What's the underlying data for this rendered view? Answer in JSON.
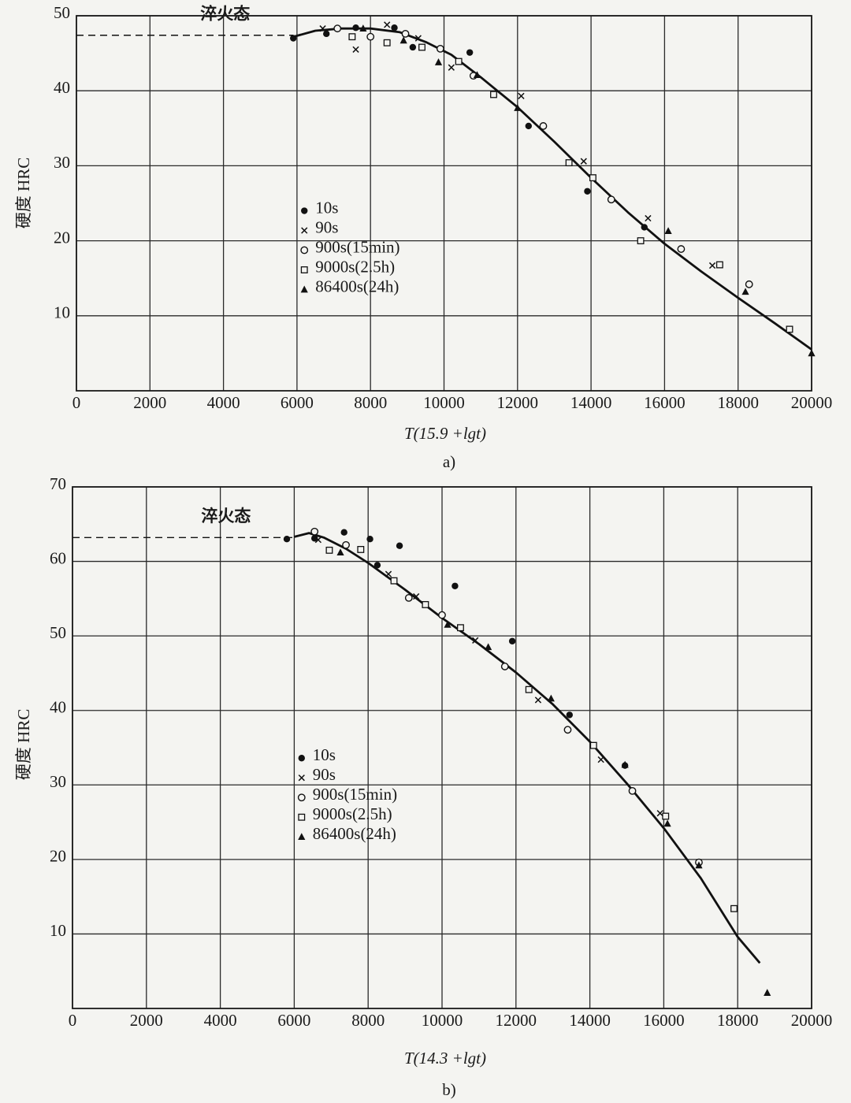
{
  "chart_data": [
    {
      "type": "scatter",
      "xlabel": "T(15.9 +lgt)",
      "ylabel": "硬度  HRC",
      "caption": "a)",
      "xlim": [
        0,
        20000
      ],
      "ylim": [
        0,
        50
      ],
      "xticks": [
        0,
        2000,
        4000,
        6000,
        8000,
        10000,
        12000,
        14000,
        16000,
        18000,
        20000
      ],
      "yticks": [
        10,
        20,
        30,
        40,
        50
      ],
      "grid": true,
      "legend": "center-left",
      "quenched": {
        "label": "淬火态",
        "value": 47.4,
        "x": [
          0,
          5900
        ]
      },
      "curve": {
        "color": "#111111",
        "x": [
          5900,
          6500,
          7200,
          8000,
          8800,
          9500,
          10200,
          11000,
          12000,
          13000,
          14000,
          15000,
          16000,
          17000,
          18000,
          19000,
          20000
        ],
        "values": [
          47.2,
          48.0,
          48.3,
          48.3,
          47.8,
          46.5,
          44.8,
          41.8,
          37.8,
          33.2,
          28.4,
          23.8,
          19.6,
          15.9,
          12.4,
          9.0,
          5.5
        ]
      },
      "series": [
        {
          "name": "10s",
          "marker": "filled-circle",
          "color": "#111111",
          "x": [
            5900,
            6800,
            7600,
            8650,
            9150,
            10700,
            12300,
            13900,
            15450
          ],
          "values": [
            47.0,
            47.6,
            48.4,
            48.4,
            45.8,
            45.1,
            35.3,
            26.6,
            21.8
          ]
        },
        {
          "name": "90s",
          "marker": "x",
          "color": "#111111",
          "x": [
            6700,
            7600,
            8450,
            9300,
            10200,
            12100,
            13800,
            15550,
            17300
          ],
          "values": [
            48.3,
            45.5,
            48.8,
            47.0,
            43.1,
            39.3,
            30.6,
            23.0,
            16.7
          ]
        },
        {
          "name": "900s(15min)",
          "marker": "circle",
          "color": "#111111",
          "x": [
            7100,
            8000,
            8950,
            9900,
            10800,
            12700,
            14550,
            16450,
            18300
          ],
          "values": [
            48.3,
            47.2,
            47.6,
            45.6,
            42.0,
            35.3,
            25.5,
            18.9,
            14.2
          ]
        },
        {
          "name": "9000s(2.5h)",
          "marker": "square",
          "color": "#111111",
          "x": [
            7500,
            8450,
            9400,
            10400,
            11350,
            13400,
            14050,
            15350,
            17500,
            19400
          ],
          "values": [
            47.2,
            46.4,
            45.8,
            43.9,
            39.5,
            30.4,
            28.4,
            20.0,
            16.8,
            8.2
          ]
        },
        {
          "name": "86400s(24h)",
          "marker": "triangle",
          "color": "#111111",
          "x": [
            7800,
            8900,
            9850,
            10900,
            12000,
            16100,
            18200,
            20000
          ],
          "values": [
            48.3,
            46.7,
            43.8,
            42.1,
            37.7,
            21.3,
            13.2,
            5.0
          ]
        }
      ]
    },
    {
      "type": "scatter",
      "xlabel": "T(14.3 +lgt)",
      "ylabel": "硬度  HRC",
      "caption": "b)",
      "xlim": [
        0,
        20000
      ],
      "ylim": [
        0,
        70
      ],
      "xticks": [
        0,
        2000,
        4000,
        6000,
        8000,
        10000,
        12000,
        14000,
        16000,
        18000,
        20000
      ],
      "yticks": [
        10,
        20,
        30,
        40,
        50,
        60,
        70
      ],
      "grid": true,
      "legend": "center-left",
      "quenched": {
        "label": "淬火态",
        "value": 63.2,
        "x": [
          0,
          6000
        ]
      },
      "curve": {
        "color": "#111111",
        "x": [
          6000,
          6400,
          6800,
          7400,
          8000,
          9000,
          10000,
          11000,
          12000,
          13000,
          14000,
          15000,
          16000,
          17000,
          18000,
          18600
        ],
        "values": [
          63.3,
          63.8,
          63.2,
          61.7,
          59.8,
          56.2,
          52.4,
          48.9,
          45.1,
          40.8,
          35.8,
          30.2,
          24.2,
          17.5,
          9.6,
          6.1
        ]
      },
      "series": [
        {
          "name": "10s",
          "marker": "filled-circle",
          "color": "#111111",
          "x": [
            5800,
            6550,
            7350,
            8050,
            8850,
            8250,
            10350,
            11900,
            13450,
            14950
          ],
          "values": [
            63.0,
            63.1,
            63.9,
            63.0,
            62.1,
            59.5,
            56.7,
            49.3,
            39.4,
            32.6
          ]
        },
        {
          "name": "90s",
          "marker": "x",
          "color": "#111111",
          "x": [
            6650,
            8550,
            9300,
            10900,
            12600,
            14300,
            15900
          ],
          "values": [
            62.9,
            58.3,
            55.3,
            49.4,
            41.4,
            33.4,
            26.2
          ]
        },
        {
          "name": "900s(15min)",
          "marker": "circle",
          "color": "#111111",
          "x": [
            6550,
            7400,
            9100,
            10000,
            11700,
            13400,
            15150,
            16950
          ],
          "values": [
            64.0,
            62.2,
            55.1,
            52.8,
            45.9,
            37.4,
            29.2,
            19.6
          ]
        },
        {
          "name": "9000s(2.5h)",
          "marker": "square",
          "color": "#111111",
          "x": [
            6950,
            7800,
            8700,
            9550,
            10500,
            12350,
            14100,
            16050,
            17900
          ],
          "values": [
            61.5,
            61.6,
            57.4,
            54.2,
            51.1,
            42.8,
            35.3,
            25.8,
            13.4
          ]
        },
        {
          "name": "86400s(24h)",
          "marker": "triangle",
          "color": "#111111",
          "x": [
            7250,
            10150,
            11250,
            12950,
            14950,
            16100,
            16950,
            18800
          ],
          "values": [
            61.2,
            51.5,
            48.5,
            41.6,
            32.7,
            24.8,
            19.2,
            2.1
          ]
        }
      ]
    }
  ]
}
